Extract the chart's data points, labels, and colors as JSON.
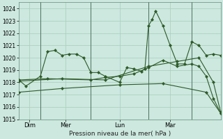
{
  "background_color": "#cce8df",
  "grid_color": "#aaccbb",
  "line_color": "#2d5a27",
  "marker_color": "#2d5a27",
  "xlabel": "Pression niveau de la mer( hPa )",
  "ylim": [
    1015.0,
    1024.5
  ],
  "yticks": [
    1015,
    1016,
    1017,
    1018,
    1019,
    1020,
    1021,
    1022,
    1023,
    1024
  ],
  "xlim": [
    0,
    28
  ],
  "vlines_x": [
    3,
    10,
    18,
    24
  ],
  "xtick_positions": [
    1.5,
    6.5,
    14,
    21
  ],
  "xtick_labels": [
    "Dim",
    "Mer",
    "Lun",
    "Mar"
  ],
  "series": [
    {
      "x": [
        0,
        1,
        3,
        4,
        5,
        6,
        7,
        8,
        9,
        10,
        11,
        12,
        14,
        15,
        16,
        17,
        17.5,
        18,
        18.5,
        19,
        20,
        21,
        22,
        23,
        24,
        25,
        26,
        27,
        28
      ],
      "y": [
        1018.2,
        1017.7,
        1018.5,
        1020.5,
        1020.6,
        1020.2,
        1020.3,
        1020.3,
        1020.0,
        1018.8,
        1018.8,
        1018.5,
        1018.0,
        1019.2,
        1019.1,
        1018.9,
        1019.1,
        1022.6,
        1023.1,
        1023.8,
        1022.6,
        1021.0,
        1019.5,
        1019.5,
        1021.3,
        1021.0,
        1020.2,
        1020.3,
        1020.2
      ]
    },
    {
      "x": [
        0,
        4,
        10,
        12,
        14,
        16,
        18,
        20,
        22,
        24,
        25,
        26,
        27,
        28
      ],
      "y": [
        1018.2,
        1018.3,
        1018.2,
        1018.4,
        1018.5,
        1018.7,
        1019.2,
        1019.8,
        1019.3,
        1019.5,
        1019.3,
        1018.5,
        1016.7,
        1015.5
      ]
    },
    {
      "x": [
        0,
        6,
        12,
        18,
        22,
        25,
        27,
        28
      ],
      "y": [
        1018.1,
        1018.3,
        1018.2,
        1019.3,
        1019.7,
        1020.0,
        1018.0,
        1015.6
      ]
    },
    {
      "x": [
        0,
        6,
        14,
        20,
        26,
        28
      ],
      "y": [
        1017.2,
        1017.5,
        1017.8,
        1017.9,
        1017.2,
        1015.5
      ]
    }
  ]
}
